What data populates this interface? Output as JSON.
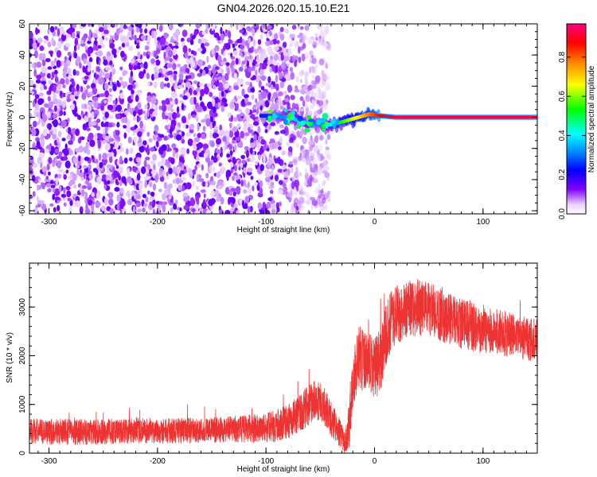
{
  "title": "GN04.2026.020.15.10.E21",
  "chart_data": [
    {
      "type": "heatmap",
      "title": "GN04.2026.020.15.10.E21",
      "xlabel": "Height of straight line (km)",
      "ylabel": "Frequency (Hz)",
      "xlim": [
        -318,
        150
      ],
      "ylim": [
        -62,
        60
      ],
      "x_ticks": [
        "-300",
        "-200",
        "-100",
        "0",
        "100"
      ],
      "x_tick_values": [
        -300,
        -200,
        -100,
        0,
        100
      ],
      "y_ticks": [
        "60",
        "40",
        "20",
        "0",
        "-20",
        "-40",
        "-60"
      ],
      "y_tick_values": [
        60,
        40,
        20,
        0,
        -20,
        -40,
        -60
      ],
      "colorbar": {
        "label": "Normalized spectral amplitude",
        "range": [
          0,
          0.97
        ],
        "ticks": [
          "0.0",
          "0.2",
          "0.4",
          "0.6",
          "0.8"
        ],
        "tick_values": [
          0,
          0.2,
          0.4,
          0.6,
          0.8
        ],
        "colormap": [
          "#ffffff",
          "#e0c0ff",
          "#8000ff",
          "#0000ff",
          "#00ffff",
          "#00ff00",
          "#ffff00",
          "#ff8000",
          "#ff0000",
          "#ff0080"
        ]
      },
      "noise_region_x": [
        -318,
        -42
      ],
      "signal_track": {
        "x": [
          -100,
          -80,
          -65,
          -55,
          -45,
          -35,
          -25,
          -15,
          -5,
          5,
          20,
          50,
          80,
          105,
          130,
          150
        ],
        "y": [
          1,
          0,
          -3,
          -4,
          -5,
          -4,
          -2,
          0,
          2,
          1,
          0,
          0,
          0,
          0,
          0,
          0
        ],
        "amplitude": [
          0.25,
          0.35,
          0.4,
          0.3,
          0.35,
          0.5,
          0.6,
          0.7,
          0.8,
          0.9,
          0.95,
          0.95,
          0.95,
          0.95,
          0.95,
          0.95
        ]
      },
      "grid": false
    },
    {
      "type": "line",
      "xlabel": "Height of straight line (km)",
      "ylabel": "SNR (10 * v/v)",
      "xlim": [
        -318,
        150
      ],
      "ylim": [
        0,
        3900
      ],
      "x_ticks": [
        "-300",
        "-200",
        "-100",
        "0",
        "100"
      ],
      "x_tick_values": [
        -300,
        -200,
        -100,
        0,
        100
      ],
      "y_ticks": [
        "0",
        "1000",
        "2000",
        "3000"
      ],
      "y_tick_values": [
        0,
        1000,
        2000,
        3000
      ],
      "line_color": "#ee3333",
      "series": [
        {
          "x": [
            -318,
            -300,
            -280,
            -260,
            -240,
            -220,
            -200,
            -180,
            -160,
            -140,
            -120,
            -100,
            -90,
            -80,
            -70,
            -60,
            -55,
            -50,
            -45,
            -40,
            -35,
            -30,
            -27,
            -24,
            -20,
            -15,
            -10,
            -5,
            0,
            5,
            10,
            15,
            20,
            25,
            30,
            40,
            50,
            60,
            70,
            80,
            90,
            100,
            110,
            120,
            130,
            140,
            150
          ],
          "mean": [
            450,
            440,
            440,
            430,
            450,
            460,
            460,
            460,
            470,
            480,
            500,
            520,
            560,
            640,
            800,
            1000,
            1100,
            1050,
            900,
            700,
            550,
            300,
            200,
            500,
            1400,
            2000,
            1900,
            1800,
            1700,
            1900,
            2400,
            2700,
            2850,
            2900,
            2950,
            3000,
            2950,
            2850,
            2750,
            2650,
            2600,
            2550,
            2500,
            2450,
            2400,
            2350,
            2300
          ],
          "spread": [
            260,
            260,
            260,
            260,
            260,
            260,
            260,
            260,
            260,
            260,
            280,
            300,
            330,
            350,
            380,
            420,
            420,
            400,
            380,
            360,
            320,
            280,
            200,
            450,
            600,
            650,
            650,
            650,
            650,
            650,
            650,
            620,
            600,
            600,
            600,
            600,
            560,
            540,
            520,
            520,
            500,
            500,
            480,
            470,
            460,
            450,
            450
          ]
        }
      ],
      "grid": false
    }
  ]
}
